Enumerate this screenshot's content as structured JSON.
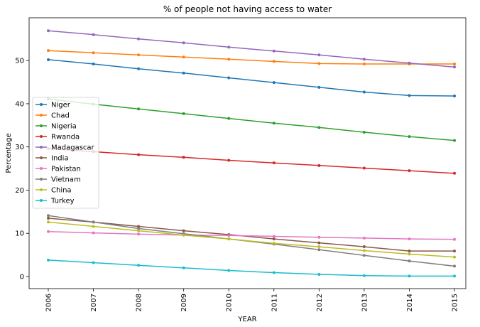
{
  "chart_data": {
    "type": "line",
    "title": "% of people not having access to water",
    "xlabel": "YEAR",
    "ylabel": "Percentage",
    "x": [
      "2006",
      "2007",
      "2008",
      "2009",
      "2010",
      "2011",
      "2012",
      "2013",
      "2014",
      "2015"
    ],
    "yticks": [
      0,
      10,
      20,
      30,
      40,
      50
    ],
    "ylim": [
      -2.8,
      59.9
    ],
    "grid": false,
    "legend_position": "center-left",
    "series": [
      {
        "name": "Niger",
        "color": "#1f77b4",
        "values": [
          50.2,
          49.2,
          48.1,
          47.1,
          46.0,
          44.9,
          43.8,
          42.7,
          41.9,
          41.8
        ]
      },
      {
        "name": "Chad",
        "color": "#ff7f0e",
        "values": [
          52.3,
          51.8,
          51.3,
          50.8,
          50.3,
          49.8,
          49.3,
          49.2,
          49.2,
          49.2
        ]
      },
      {
        "name": "Nigeria",
        "color": "#2ca02c",
        "values": [
          41.1,
          39.9,
          38.8,
          37.7,
          36.6,
          35.5,
          34.5,
          33.4,
          32.4,
          31.5
        ]
      },
      {
        "name": "Rwanda",
        "color": "#d62728",
        "values": [
          29.6,
          28.9,
          28.2,
          27.6,
          26.9,
          26.3,
          25.7,
          25.1,
          24.5,
          23.9
        ]
      },
      {
        "name": "Madagascar",
        "color": "#9467bd",
        "values": [
          56.9,
          56.0,
          55.0,
          54.1,
          53.1,
          52.2,
          51.3,
          50.3,
          49.4,
          48.5
        ]
      },
      {
        "name": "India",
        "color": "#8c564b",
        "values": [
          13.5,
          12.6,
          11.6,
          10.6,
          9.7,
          8.7,
          7.8,
          6.9,
          5.9,
          5.9
        ]
      },
      {
        "name": "Pakistan",
        "color": "#e377c2",
        "values": [
          10.4,
          10.1,
          9.8,
          9.6,
          9.5,
          9.3,
          9.1,
          8.9,
          8.7,
          8.6
        ]
      },
      {
        "name": "Vietnam",
        "color": "#7f7f7f",
        "values": [
          14.1,
          12.6,
          11.1,
          9.9,
          8.7,
          7.5,
          6.2,
          4.9,
          3.6,
          2.4
        ]
      },
      {
        "name": "China",
        "color": "#bcbd22",
        "values": [
          12.6,
          11.6,
          10.6,
          9.6,
          8.7,
          7.7,
          6.9,
          6.0,
          5.2,
          4.5
        ]
      },
      {
        "name": "Turkey",
        "color": "#17becf",
        "values": [
          3.8,
          3.2,
          2.6,
          2.0,
          1.4,
          0.9,
          0.5,
          0.2,
          0.1,
          0.1
        ]
      }
    ]
  }
}
